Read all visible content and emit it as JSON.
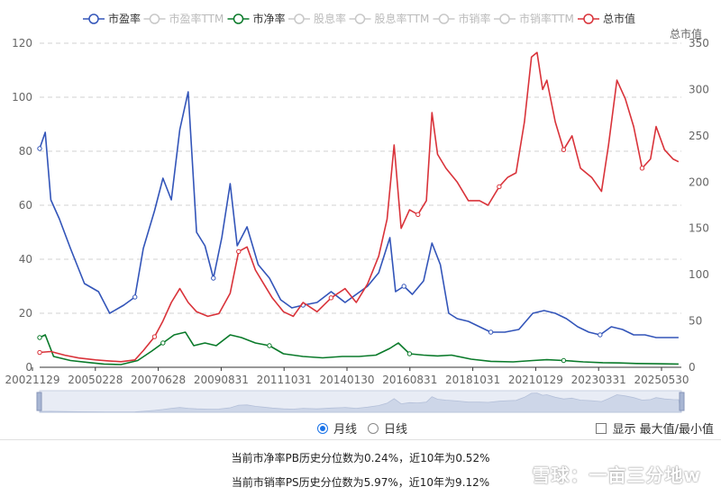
{
  "chart_data": {
    "type": "line",
    "legend": [
      {
        "name": "市盈率",
        "color": "#3355b9",
        "active": true
      },
      {
        "name": "市盈率TTM",
        "color": "#bbbbbb",
        "active": false
      },
      {
        "name": "市净率",
        "color": "#0a7a2a",
        "active": true
      },
      {
        "name": "股息率",
        "color": "#bbbbbb",
        "active": false
      },
      {
        "name": "股息率TTM",
        "color": "#bbbbbb",
        "active": false
      },
      {
        "name": "市销率",
        "color": "#bbbbbb",
        "active": false
      },
      {
        "name": "市销率TTM",
        "color": "#bbbbbb",
        "active": false
      },
      {
        "name": "总市值",
        "color": "#d9333a",
        "active": true
      }
    ],
    "left_axis": {
      "min": 0,
      "max": 120,
      "ticks": [
        0,
        20,
        40,
        60,
        80,
        100,
        120
      ]
    },
    "right_axis": {
      "title": "总市值",
      "min": 0,
      "max": 350,
      "ticks": [
        0,
        50,
        100,
        150,
        200,
        250,
        300,
        350
      ]
    },
    "x_tick_labels": [
      "20021129",
      "20050228",
      "20070628",
      "20090831",
      "20111031",
      "20140130",
      "20160831",
      "20181031",
      "20210129",
      "20230331",
      "20250530"
    ],
    "x_range": [
      2002.9,
      2025.8
    ],
    "grid": true,
    "series": [
      {
        "name": "市盈率",
        "axis": "left",
        "color": "#3355b9",
        "x": [
          2002.9,
          2003.1,
          2003.3,
          2003.6,
          2004.0,
          2004.5,
          2005.0,
          2005.4,
          2005.9,
          2006.3,
          2006.6,
          2007.0,
          2007.3,
          2007.6,
          2007.9,
          2008.2,
          2008.5,
          2008.8,
          2009.1,
          2009.4,
          2009.7,
          2009.95,
          2010.3,
          2010.7,
          2011.1,
          2011.5,
          2011.9,
          2012.3,
          2012.8,
          2013.3,
          2013.8,
          2014.2,
          2014.6,
          2015.0,
          2015.4,
          2015.6,
          2015.9,
          2016.2,
          2016.6,
          2016.9,
          2017.2,
          2017.5,
          2017.8,
          2018.2,
          2018.6,
          2019.0,
          2019.5,
          2020.0,
          2020.5,
          2020.9,
          2021.3,
          2021.7,
          2022.1,
          2022.5,
          2022.9,
          2023.3,
          2023.7,
          2024.1,
          2024.5,
          2024.9,
          2025.3,
          2025.7
        ],
        "y": [
          81,
          87,
          62,
          55,
          44,
          31,
          28,
          20,
          23,
          26,
          44,
          58,
          70,
          62,
          88,
          102,
          50,
          45,
          33,
          48,
          68,
          45,
          52,
          38,
          33,
          25,
          22,
          23,
          24,
          28,
          24,
          27,
          30,
          35,
          48,
          28,
          30,
          27,
          32,
          46,
          38,
          20,
          18,
          17,
          15,
          13,
          13,
          14,
          20,
          21,
          20,
          18,
          15,
          13,
          12,
          15,
          14,
          12,
          12,
          11,
          11,
          11
        ]
      },
      {
        "name": "市净率",
        "axis": "left",
        "color": "#0a7a2a",
        "x": [
          2002.9,
          2003.1,
          2003.4,
          2004.0,
          2004.6,
          2005.2,
          2005.8,
          2006.4,
          2006.9,
          2007.3,
          2007.7,
          2008.1,
          2008.4,
          2008.8,
          2009.2,
          2009.7,
          2010.1,
          2010.6,
          2011.1,
          2011.6,
          2012.3,
          2013.0,
          2013.7,
          2014.3,
          2014.9,
          2015.4,
          2015.7,
          2016.1,
          2016.6,
          2017.1,
          2017.6,
          2018.3,
          2019.0,
          2019.8,
          2020.5,
          2021.0,
          2021.6,
          2022.3,
          2023.0,
          2023.6,
          2024.2,
          2024.9,
          2025.7
        ],
        "y": [
          11,
          12,
          4,
          2.5,
          1.8,
          1.2,
          1.0,
          2.5,
          6,
          9,
          12,
          13,
          8,
          9,
          8,
          12,
          11,
          9,
          8,
          5,
          4,
          3.5,
          4,
          4,
          4.5,
          7,
          9,
          5,
          4.5,
          4.2,
          4.5,
          3.0,
          2.2,
          2.0,
          2.5,
          2.8,
          2.5,
          2.0,
          1.7,
          1.6,
          1.4,
          1.3,
          1.2
        ]
      },
      {
        "name": "总市值",
        "axis": "right",
        "color": "#d9333a",
        "x": [
          2002.9,
          2003.3,
          2003.8,
          2004.3,
          2004.9,
          2005.3,
          2005.8,
          2006.3,
          2006.6,
          2007.0,
          2007.3,
          2007.6,
          2007.9,
          2008.2,
          2008.5,
          2008.9,
          2009.3,
          2009.7,
          2010.0,
          2010.3,
          2010.6,
          2010.9,
          2011.2,
          2011.6,
          2011.95,
          2012.3,
          2012.8,
          2013.3,
          2013.8,
          2014.2,
          2014.6,
          2015.0,
          2015.3,
          2015.55,
          2015.8,
          2016.1,
          2016.4,
          2016.7,
          2016.9,
          2017.1,
          2017.4,
          2017.8,
          2018.2,
          2018.6,
          2018.9,
          2019.3,
          2019.6,
          2019.9,
          2020.2,
          2020.45,
          2020.65,
          2020.85,
          2021.0,
          2021.3,
          2021.6,
          2021.9,
          2022.2,
          2022.6,
          2022.95,
          2023.2,
          2023.5,
          2023.8,
          2024.1,
          2024.4,
          2024.7,
          2024.9,
          2025.2,
          2025.5,
          2025.7
        ],
        "y": [
          16,
          17,
          13,
          10,
          8,
          7,
          6,
          8,
          18,
          33,
          50,
          70,
          85,
          70,
          60,
          55,
          58,
          80,
          125,
          130,
          105,
          90,
          75,
          60,
          55,
          70,
          60,
          75,
          85,
          70,
          90,
          120,
          160,
          240,
          150,
          170,
          165,
          180,
          275,
          230,
          215,
          200,
          180,
          180,
          175,
          195,
          205,
          210,
          265,
          335,
          340,
          300,
          310,
          265,
          235,
          250,
          215,
          205,
          190,
          240,
          310,
          290,
          260,
          215,
          225,
          260,
          235,
          225,
          222
        ]
      }
    ]
  },
  "controls": {
    "radio_monthly": "月线",
    "radio_daily": "日线",
    "checkbox_label": "显示 最大值/最小值"
  },
  "notes": {
    "pb_line": "当前市净率PB历史分位数为0.24%，近10年为0.52%",
    "ps_line": "当前市销率PS历史分位数为5.97%，近10年为9.12%"
  },
  "watermark": "雪球：一亩三分地w"
}
